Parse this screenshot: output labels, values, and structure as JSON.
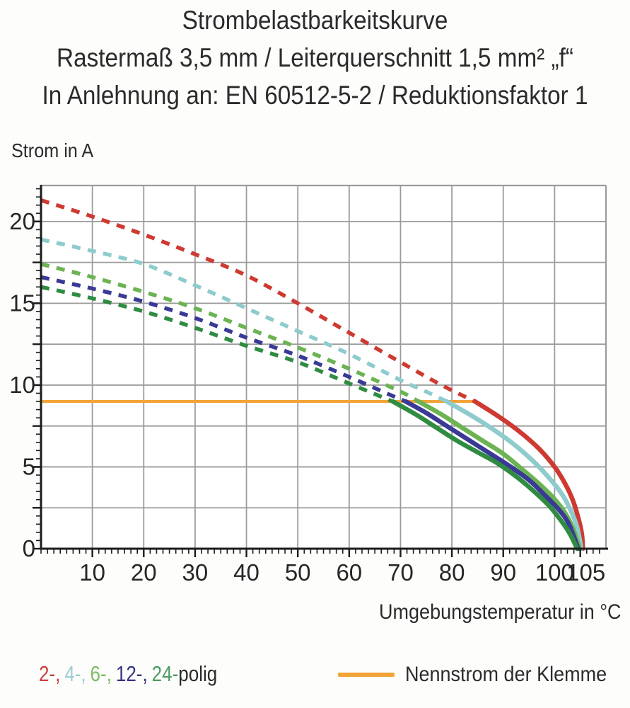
{
  "page": {
    "background": "#fdfdfc",
    "text_color": "#2b2b2b"
  },
  "legend": {
    "poles": [
      {
        "label": "2-,",
        "color": "#c8413b"
      },
      {
        "label": "4-,",
        "color": "#9ecdd2"
      },
      {
        "label": "6-,",
        "color": "#7fbd65"
      },
      {
        "label": "12-,",
        "color": "#34347f"
      },
      {
        "label": "24-",
        "color": "#4d9c63"
      }
    ],
    "suffix": "polig",
    "suffix_color": "#2b2b2b"
  },
  "chart_data": {
    "type": "line",
    "title": "Strombelastbarkeitskurve",
    "subtitle": "Rastermaß 3,5 mm / Leiterquerschnitt 1,5 mm² „f“",
    "norm_note": "In Anlehnung an: EN 60512-5-2 / Reduktionsfaktor 1",
    "xlabel": "Umgebungstemperatur in °C",
    "ylabel": "Strom in A",
    "xlim": [
      0,
      110
    ],
    "ylim": [
      0,
      22.2
    ],
    "x_ticks": [
      10,
      20,
      30,
      40,
      50,
      60,
      70,
      80,
      90,
      100,
      105
    ],
    "y_ticks": [
      0,
      5,
      10,
      15,
      20
    ],
    "x_grid": [
      10,
      20,
      30,
      40,
      50,
      60,
      70,
      80,
      90,
      100
    ],
    "y_grid": [
      2.5,
      5,
      7.5,
      10,
      12.5,
      15,
      17.5,
      20
    ],
    "x_minor_step": 1.25,
    "y_minor_step": 0.5,
    "grid": true,
    "grid_color": "#9b9b9b",
    "axis_color": "#1c1c1c",
    "nominal": {
      "name": "Nennstrom der Klemme",
      "color": "#f2a438",
      "current_A": 9,
      "x_start": 0,
      "x_end": 84.5
    },
    "series": [
      {
        "name": "2-polig",
        "poles": 2,
        "color": "#ce3a31",
        "dashed": [
          [
            0,
            21.3
          ],
          [
            10,
            20.3
          ],
          [
            20,
            19.2
          ],
          [
            30,
            18.0
          ],
          [
            40,
            16.7
          ],
          [
            50,
            15.0
          ],
          [
            60,
            13.2
          ],
          [
            70,
            11.4
          ],
          [
            78,
            10.0
          ],
          [
            84.5,
            9.0
          ]
        ],
        "solid": [
          [
            84.5,
            9.0
          ],
          [
            89,
            8.1
          ],
          [
            93,
            7.2
          ],
          [
            97,
            6.1
          ],
          [
            100,
            5.0
          ],
          [
            102,
            4.0
          ],
          [
            103.5,
            3.0
          ],
          [
            104.6,
            1.9
          ],
          [
            105.3,
            0.9
          ],
          [
            105.5,
            0
          ]
        ]
      },
      {
        "name": "4-polig",
        "poles": 4,
        "color": "#8ecbcd",
        "dashed": [
          [
            0,
            18.9
          ],
          [
            10,
            18.2
          ],
          [
            20,
            17.4
          ],
          [
            30,
            16.1
          ],
          [
            40,
            14.7
          ],
          [
            50,
            13.3
          ],
          [
            60,
            11.9
          ],
          [
            70,
            10.3
          ],
          [
            75,
            9.6
          ],
          [
            79,
            9.0
          ]
        ],
        "solid": [
          [
            79,
            9.0
          ],
          [
            84,
            8.1
          ],
          [
            88,
            7.3
          ],
          [
            92,
            6.4
          ],
          [
            96,
            5.3
          ],
          [
            99,
            4.3
          ],
          [
            101.5,
            3.3
          ],
          [
            103.2,
            2.3
          ],
          [
            104.4,
            1.3
          ],
          [
            105.2,
            0
          ]
        ]
      },
      {
        "name": "6-polig",
        "poles": 6,
        "color": "#6cb353",
        "dashed": [
          [
            0,
            17.4
          ],
          [
            10,
            16.6
          ],
          [
            20,
            15.7
          ],
          [
            30,
            14.7
          ],
          [
            40,
            13.5
          ],
          [
            50,
            12.3
          ],
          [
            60,
            11.0
          ],
          [
            70,
            9.6
          ],
          [
            73.5,
            9.0
          ]
        ],
        "solid": [
          [
            73.5,
            9.0
          ],
          [
            78,
            8.2
          ],
          [
            82,
            7.4
          ],
          [
            86,
            6.6
          ],
          [
            90,
            5.8
          ],
          [
            93.5,
            4.9
          ],
          [
            96.5,
            4.1
          ],
          [
            99.5,
            3.2
          ],
          [
            101.8,
            2.3
          ],
          [
            103.5,
            1.3
          ],
          [
            104.9,
            0
          ]
        ]
      },
      {
        "name": "12-polig",
        "poles": 12,
        "color": "#3a3a96",
        "dashed": [
          [
            0,
            16.6
          ],
          [
            10,
            15.9
          ],
          [
            20,
            15.1
          ],
          [
            30,
            14.1
          ],
          [
            40,
            12.9
          ],
          [
            50,
            11.8
          ],
          [
            60,
            10.5
          ],
          [
            68,
            9.4
          ],
          [
            71,
            9.0
          ]
        ],
        "solid": [
          [
            71,
            9.0
          ],
          [
            75,
            8.3
          ],
          [
            79,
            7.5
          ],
          [
            83,
            6.7
          ],
          [
            87,
            5.9
          ],
          [
            91,
            5.1
          ],
          [
            95,
            4.2
          ],
          [
            98,
            3.3
          ],
          [
            100.8,
            2.4
          ],
          [
            102.8,
            1.5
          ],
          [
            104.6,
            0
          ]
        ]
      },
      {
        "name": "24-polig",
        "poles": 24,
        "color": "#2f8c41",
        "dashed": [
          [
            0,
            16.0
          ],
          [
            10,
            15.3
          ],
          [
            20,
            14.5
          ],
          [
            30,
            13.5
          ],
          [
            40,
            12.4
          ],
          [
            50,
            11.4
          ],
          [
            60,
            10.1
          ],
          [
            68.5,
            9.0
          ]
        ],
        "solid": [
          [
            68.5,
            9.0
          ],
          [
            73,
            8.2
          ],
          [
            77,
            7.4
          ],
          [
            81,
            6.6
          ],
          [
            85,
            5.9
          ],
          [
            89,
            5.2
          ],
          [
            93,
            4.3
          ],
          [
            96,
            3.5
          ],
          [
            99,
            2.6
          ],
          [
            101.3,
            1.7
          ],
          [
            103,
            0.9
          ],
          [
            104.4,
            0
          ]
        ]
      }
    ]
  }
}
